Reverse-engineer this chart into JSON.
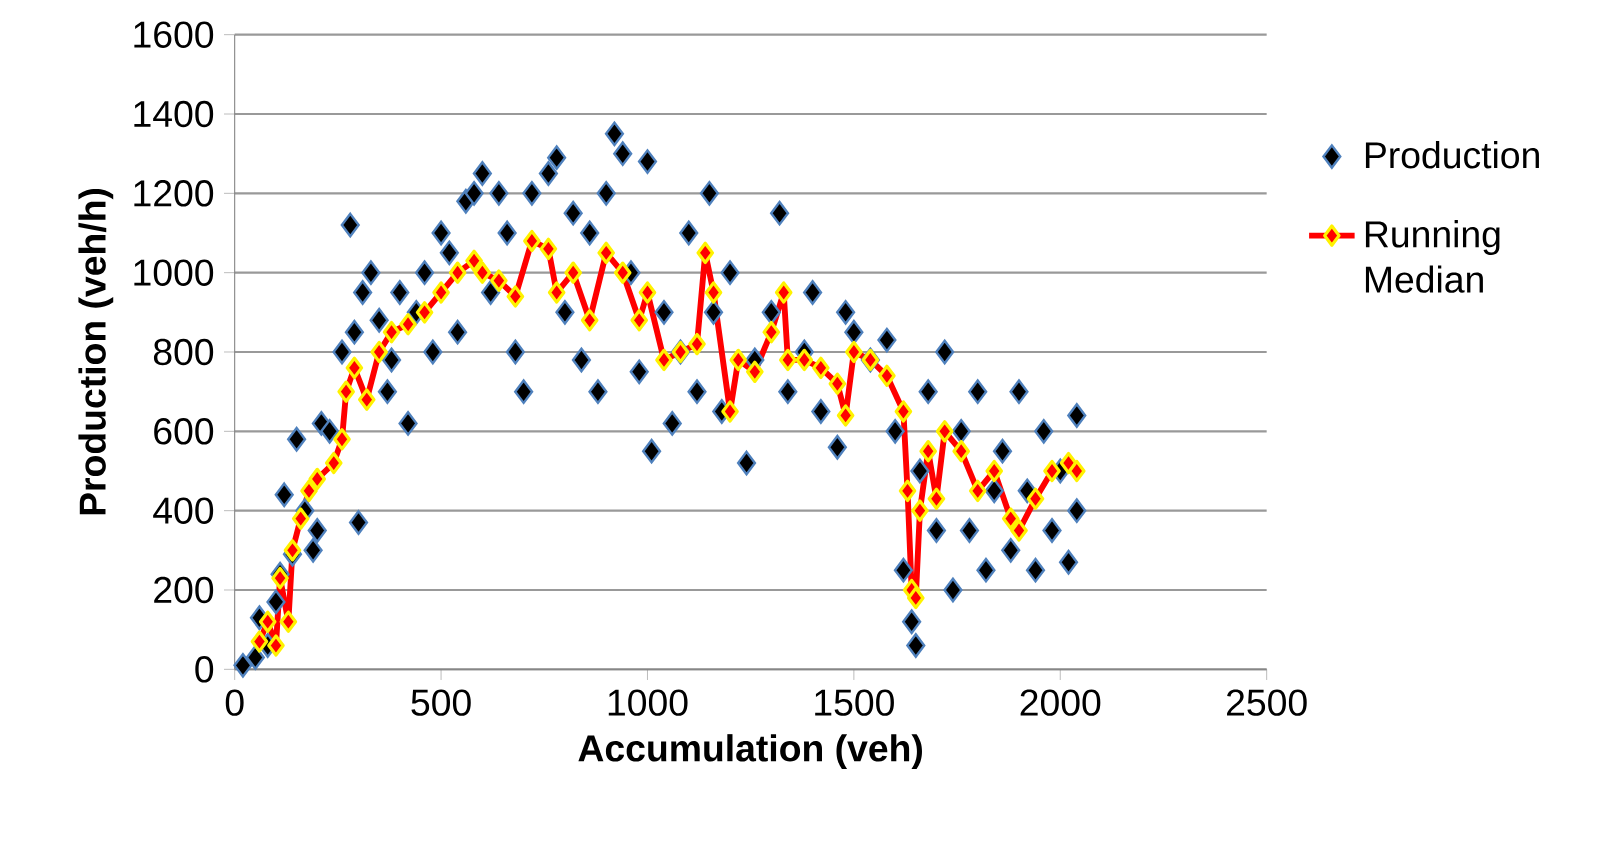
{
  "chart_data": {
    "type": "scatter",
    "xlabel": "Accumulation (veh)",
    "ylabel": "Production (veh/h)",
    "xlim": [
      0,
      2500
    ],
    "xticks": [
      0,
      500,
      1000,
      1500,
      2000,
      2500
    ],
    "ylim": [
      0,
      1600
    ],
    "yticks": [
      0,
      200,
      400,
      600,
      800,
      1000,
      1200,
      1400,
      1600
    ],
    "grid": "y",
    "legend": "right",
    "marker": "diamond",
    "series": [
      {
        "name": "Production",
        "color": "#000000",
        "x": [
          20,
          50,
          60,
          80,
          100,
          110,
          120,
          140,
          150,
          170,
          190,
          200,
          210,
          230,
          260,
          280,
          290,
          300,
          310,
          330,
          350,
          370,
          380,
          400,
          420,
          440,
          460,
          480,
          500,
          520,
          540,
          560,
          580,
          600,
          620,
          640,
          660,
          680,
          700,
          720,
          760,
          780,
          800,
          820,
          840,
          860,
          880,
          900,
          920,
          940,
          960,
          980,
          1000,
          1010,
          1040,
          1060,
          1080,
          1100,
          1120,
          1150,
          1160,
          1180,
          1200,
          1240,
          1260,
          1300,
          1320,
          1340,
          1380,
          1400,
          1420,
          1460,
          1480,
          1500,
          1540,
          1580,
          1600,
          1620,
          1640,
          1650,
          1660,
          1680,
          1700,
          1720,
          1740,
          1760,
          1780,
          1800,
          1820,
          1840,
          1860,
          1880,
          1900,
          1920,
          1940,
          1960,
          1980,
          2000,
          2020,
          2040,
          2040
        ],
        "values": [
          10,
          30,
          130,
          60,
          170,
          240,
          440,
          290,
          580,
          400,
          300,
          350,
          620,
          600,
          800,
          1120,
          850,
          370,
          950,
          1000,
          880,
          700,
          780,
          950,
          620,
          900,
          1000,
          800,
          1100,
          1050,
          850,
          1180,
          1200,
          1250,
          950,
          1200,
          1100,
          800,
          700,
          1200,
          1250,
          1290,
          900,
          1150,
          780,
          1100,
          700,
          1200,
          1350,
          1300,
          1000,
          750,
          1280,
          550,
          900,
          620,
          800,
          1100,
          700,
          1200,
          900,
          650,
          1000,
          520,
          780,
          900,
          1150,
          700,
          800,
          950,
          650,
          560,
          900,
          850,
          780,
          830,
          600,
          250,
          120,
          60,
          500,
          700,
          350,
          800,
          200,
          600,
          350,
          700,
          250,
          450,
          550,
          300,
          700,
          450,
          250,
          600,
          350,
          500,
          270,
          640,
          400
        ]
      },
      {
        "name": "Running Median",
        "type": "line",
        "color": "#ff0000",
        "x": [
          60,
          80,
          100,
          110,
          130,
          140,
          160,
          180,
          200,
          240,
          260,
          270,
          290,
          320,
          350,
          380,
          420,
          460,
          500,
          540,
          580,
          600,
          640,
          680,
          720,
          760,
          780,
          820,
          860,
          900,
          940,
          980,
          1000,
          1040,
          1080,
          1120,
          1140,
          1160,
          1200,
          1220,
          1260,
          1300,
          1330,
          1340,
          1380,
          1420,
          1460,
          1480,
          1500,
          1540,
          1580,
          1620,
          1630,
          1640,
          1650,
          1660,
          1680,
          1700,
          1720,
          1760,
          1800,
          1840,
          1880,
          1900,
          1940,
          1980,
          2020,
          2040
        ],
        "values": [
          70,
          120,
          60,
          230,
          120,
          300,
          380,
          450,
          480,
          520,
          580,
          700,
          760,
          680,
          800,
          850,
          870,
          900,
          950,
          1000,
          1030,
          1000,
          980,
          940,
          1080,
          1060,
          950,
          1000,
          880,
          1050,
          1000,
          880,
          950,
          780,
          800,
          820,
          1050,
          950,
          650,
          780,
          750,
          850,
          950,
          780,
          780,
          760,
          720,
          640,
          800,
          780,
          740,
          650,
          450,
          200,
          180,
          400,
          550,
          430,
          600,
          550,
          450,
          500,
          380,
          350,
          430,
          500,
          520,
          500
        ]
      }
    ]
  }
}
